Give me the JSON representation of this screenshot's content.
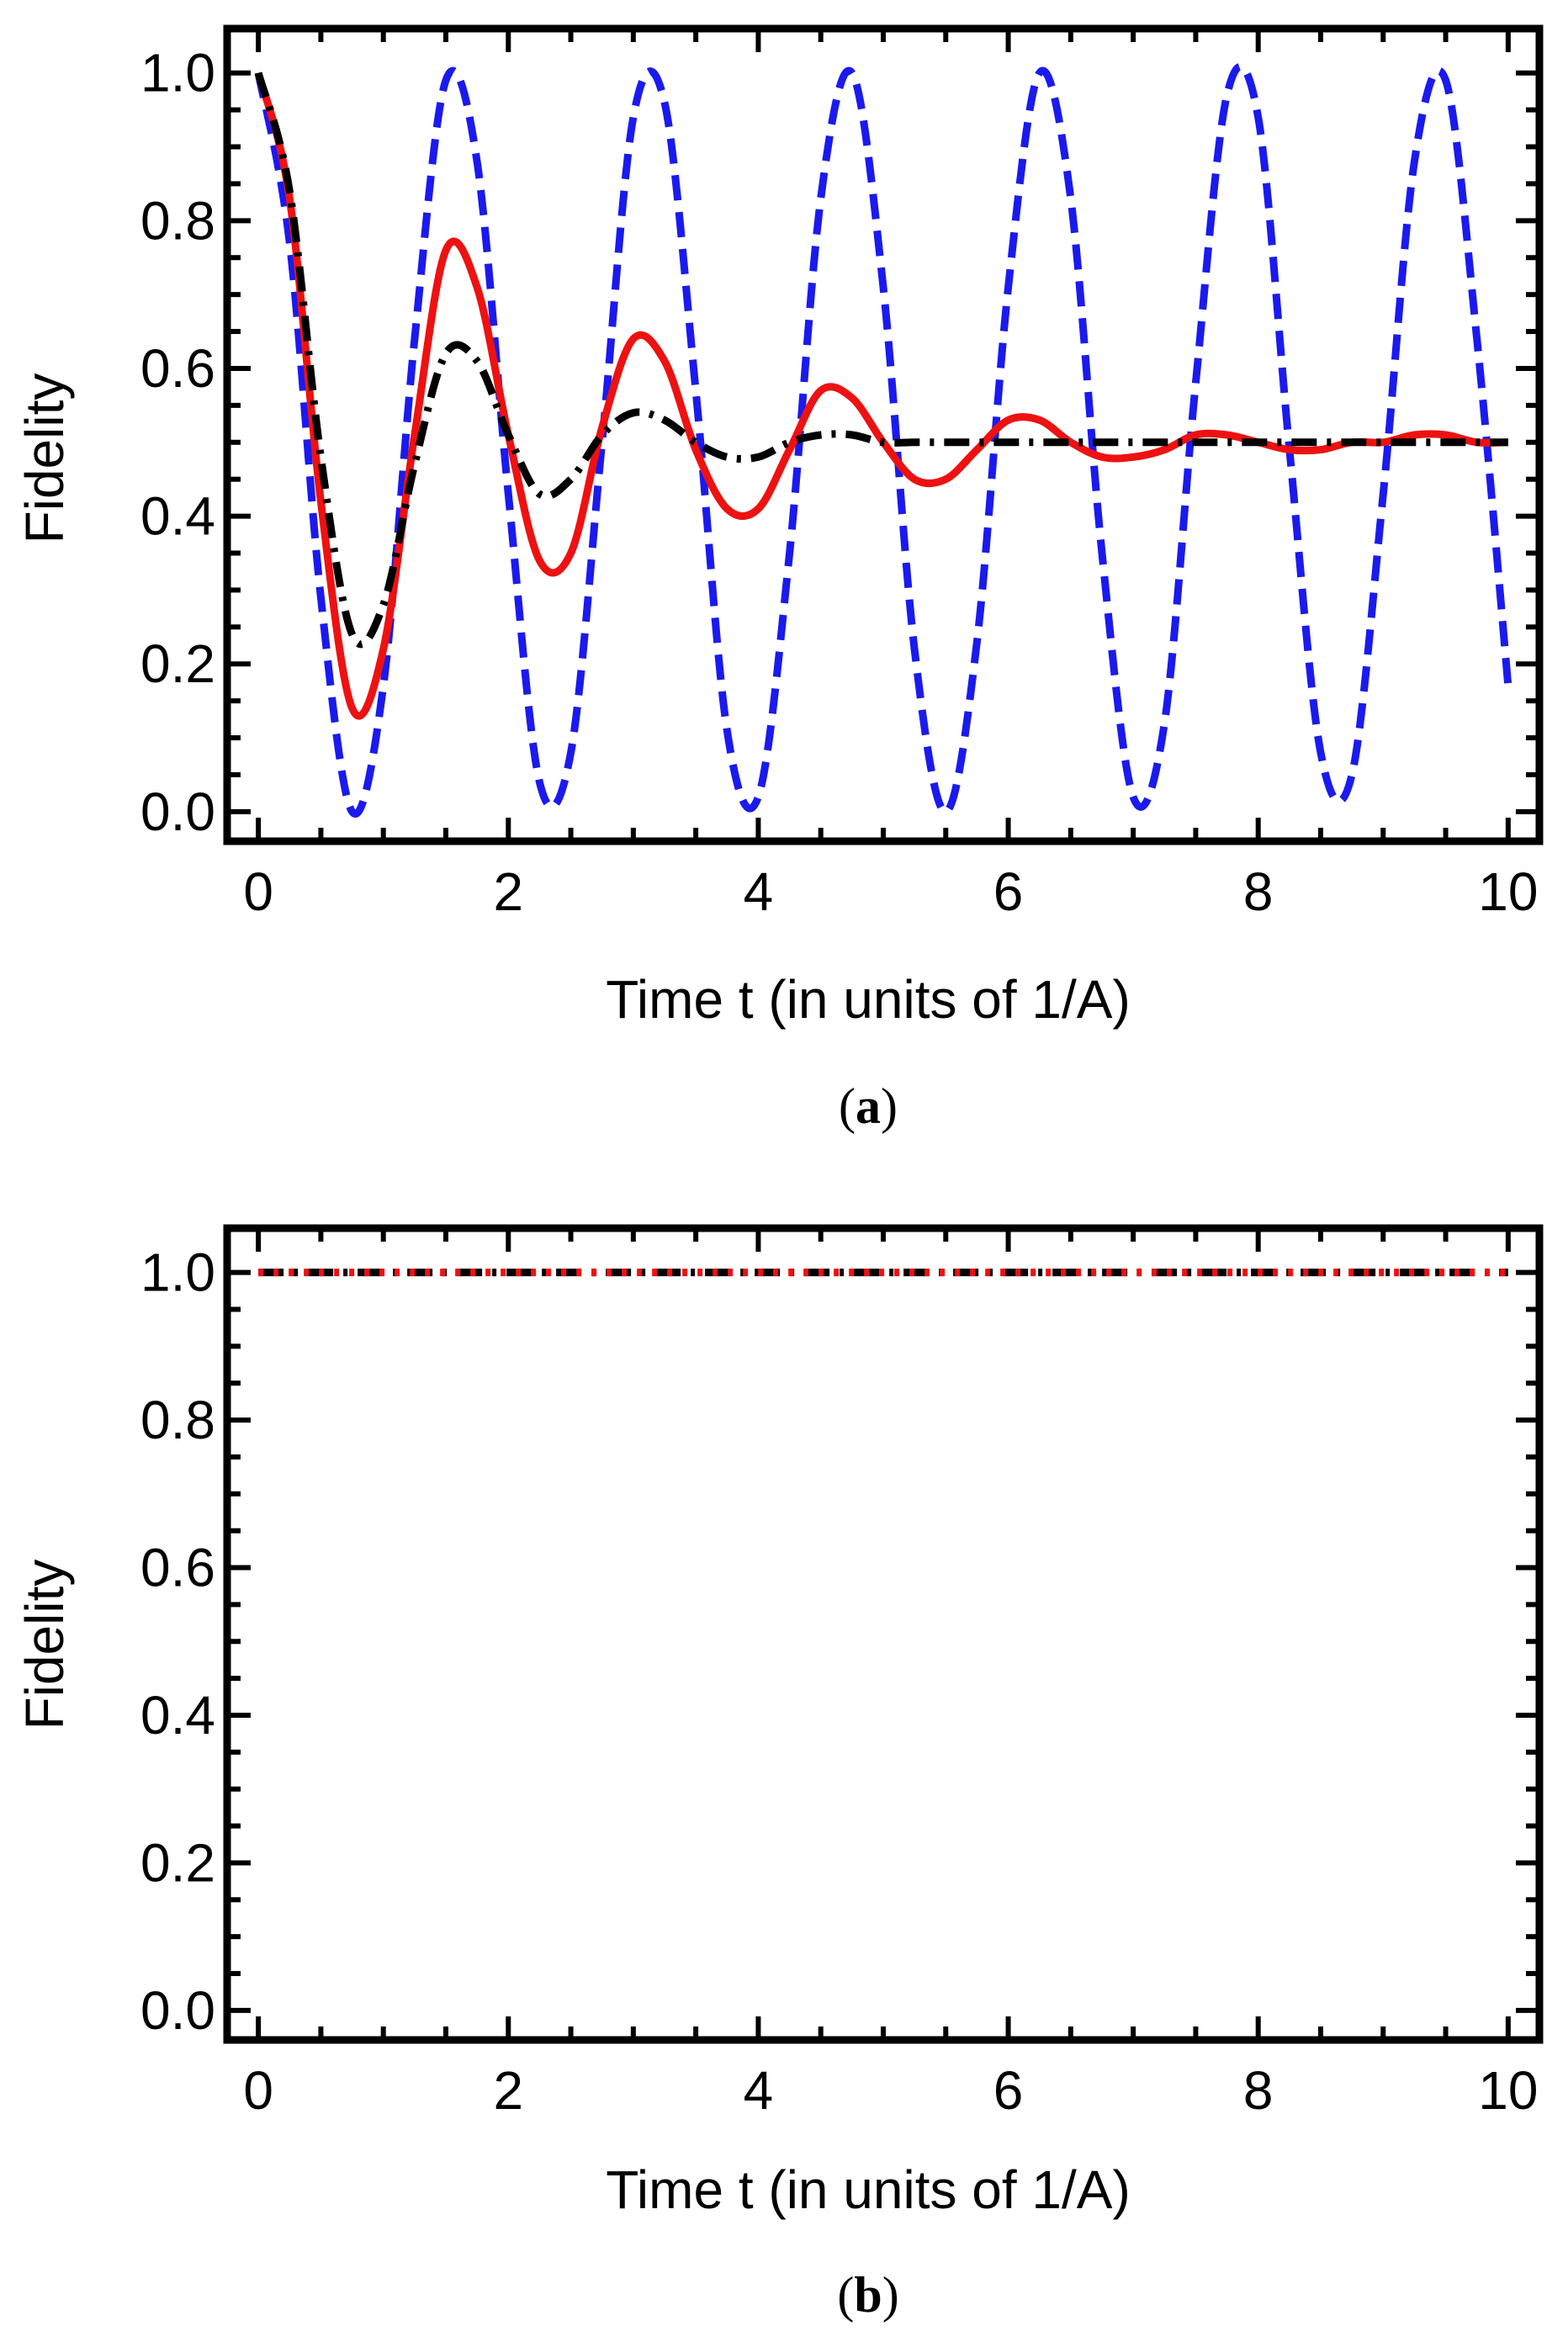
{
  "chart_data": [
    {
      "type": "line",
      "panel": "a",
      "caption_open": "(",
      "caption_letter": "a",
      "caption_close": ")",
      "xlabel": "Time t (in units of 1/A)",
      "ylabel": "Fidelity",
      "xlim": [
        -0.25,
        10.25
      ],
      "ylim": [
        -0.04,
        1.06
      ],
      "xticks": [
        0,
        2,
        4,
        6,
        8,
        10
      ],
      "xtick_labels": [
        "0",
        "2",
        "4",
        "6",
        "8",
        "10"
      ],
      "yticks": [
        0.0,
        0.2,
        0.4,
        0.6,
        0.8,
        1.0
      ],
      "ytick_labels": [
        "0.0",
        "0.2",
        "0.4",
        "0.6",
        "0.8",
        "1.0"
      ],
      "grid": false,
      "series": [
        {
          "name": "blue dashed",
          "color": "#1a1aee",
          "style": "dashed",
          "x": [
            0,
            0.25,
            0.5,
            0.75,
            1.0,
            1.25,
            1.5,
            1.75,
            2.0,
            2.25,
            2.5,
            2.75,
            3.0,
            3.25,
            3.5,
            3.75,
            4.0,
            4.25,
            4.5,
            4.75,
            5.0,
            5.25,
            5.5,
            5.75,
            6.0,
            6.25,
            6.5,
            6.75,
            7.0,
            7.25,
            7.5,
            7.75,
            8.0,
            8.25,
            8.5,
            8.75,
            9.0,
            9.25,
            9.5,
            9.75,
            10.0
          ],
          "y": [
            1.0,
            0.77,
            0.29,
            0.0,
            0.17,
            0.64,
            0.99,
            0.88,
            0.43,
            0.04,
            0.08,
            0.5,
            0.94,
            0.96,
            0.57,
            0.11,
            0.02,
            0.35,
            0.83,
            1.0,
            0.71,
            0.22,
            0.0,
            0.23,
            0.71,
            1.0,
            0.83,
            0.35,
            0.02,
            0.12,
            0.58,
            0.97,
            0.94,
            0.49,
            0.08,
            0.05,
            0.43,
            0.88,
            0.99,
            0.64,
            0.17
          ]
        },
        {
          "name": "red solid",
          "color": "#ee1111",
          "style": "solid",
          "x": [
            0,
            0.25,
            0.5,
            0.75,
            1.0,
            1.25,
            1.5,
            1.75,
            2.0,
            2.25,
            2.5,
            2.75,
            3.0,
            3.25,
            3.5,
            3.75,
            4.0,
            4.25,
            4.5,
            4.75,
            5.0,
            5.25,
            5.5,
            5.75,
            6.0,
            6.25,
            6.5,
            6.75,
            7.0,
            7.25,
            7.5,
            7.75,
            8.0,
            8.25,
            8.5,
            8.75,
            9.0,
            9.25,
            9.5,
            9.75,
            10.0
          ],
          "y": [
            1.0,
            0.83,
            0.42,
            0.14,
            0.22,
            0.51,
            0.76,
            0.71,
            0.51,
            0.34,
            0.35,
            0.52,
            0.64,
            0.61,
            0.49,
            0.41,
            0.41,
            0.49,
            0.57,
            0.56,
            0.5,
            0.45,
            0.45,
            0.49,
            0.53,
            0.53,
            0.5,
            0.48,
            0.48,
            0.49,
            0.51,
            0.51,
            0.5,
            0.49,
            0.49,
            0.5,
            0.5,
            0.51,
            0.51,
            0.5,
            0.5
          ]
        },
        {
          "name": "black dash-dot",
          "color": "#000000",
          "style": "dashdot",
          "x": [
            0,
            0.25,
            0.5,
            0.75,
            1.0,
            1.25,
            1.5,
            1.75,
            2.0,
            2.25,
            2.5,
            2.75,
            3.0,
            3.25,
            3.5,
            3.75,
            4.0,
            4.25,
            4.5,
            4.75,
            5.0,
            5.25,
            5.5,
            5.75,
            6.0,
            6.25,
            6.5,
            6.75,
            7.0,
            7.25,
            7.5,
            7.75,
            8.0,
            8.25,
            8.5,
            8.75,
            9.0,
            9.25,
            9.5,
            9.75,
            10.0
          ],
          "y": [
            1.0,
            0.84,
            0.48,
            0.24,
            0.28,
            0.47,
            0.62,
            0.61,
            0.51,
            0.43,
            0.45,
            0.51,
            0.54,
            0.53,
            0.5,
            0.48,
            0.48,
            0.5,
            0.51,
            0.51,
            0.5,
            0.5,
            0.5,
            0.5,
            0.5,
            0.5,
            0.5,
            0.5,
            0.5,
            0.5,
            0.5,
            0.5,
            0.5,
            0.5,
            0.5,
            0.5,
            0.5,
            0.5,
            0.5,
            0.5,
            0.5
          ]
        }
      ]
    },
    {
      "type": "line",
      "panel": "b",
      "caption_open": "(",
      "caption_letter": "b",
      "caption_close": ")",
      "xlabel": "Time t (in units of 1/A)",
      "ylabel": "Fidelity",
      "xlim": [
        -0.25,
        10.25
      ],
      "ylim": [
        -0.04,
        1.06
      ],
      "xticks": [
        0,
        2,
        4,
        6,
        8,
        10
      ],
      "xtick_labels": [
        "0",
        "2",
        "4",
        "6",
        "8",
        "10"
      ],
      "yticks": [
        0.0,
        0.2,
        0.4,
        0.6,
        0.8,
        1.0
      ],
      "ytick_labels": [
        "0.0",
        "0.2",
        "0.4",
        "0.6",
        "0.8",
        "1.0"
      ],
      "grid": false,
      "series": [
        {
          "name": "black dash-dot",
          "color": "#000000",
          "style": "dashdot",
          "x": [
            0,
            10
          ],
          "y": [
            1.0,
            1.0
          ]
        },
        {
          "name": "red dotted",
          "color": "#ee1111",
          "style": "dotted",
          "x": [
            0,
            10
          ],
          "y": [
            1.0,
            1.0
          ]
        }
      ]
    }
  ]
}
